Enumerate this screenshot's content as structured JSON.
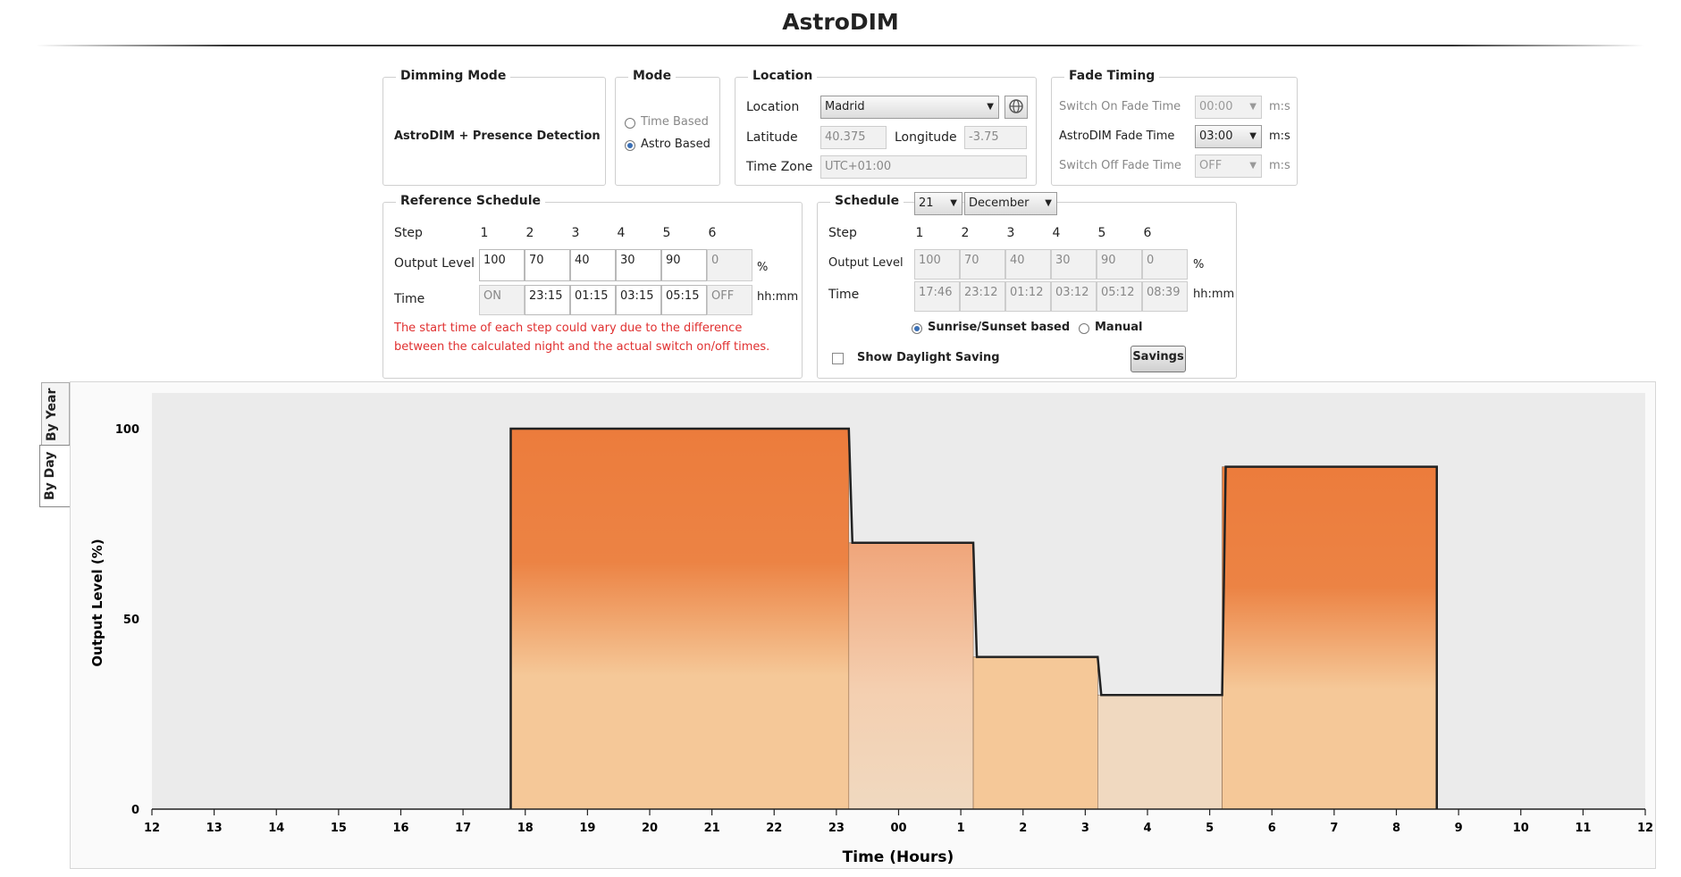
{
  "app": {
    "title": "AstroDIM"
  },
  "dimming_mode": {
    "legend": "Dimming Mode",
    "value": "AstroDIM + Presence Detection"
  },
  "mode": {
    "legend": "Mode",
    "options": [
      "Time Based",
      "Astro Based"
    ],
    "selected": "Astro Based"
  },
  "location": {
    "legend": "Location",
    "location_label": "Location",
    "location_value": "Madrid",
    "latitude_label": "Latitude",
    "latitude_value": "40.375",
    "longitude_label": "Longitude",
    "longitude_value": "-3.75",
    "timezone_label": "Time Zone",
    "timezone_value": "UTC+01:00"
  },
  "fade_timing": {
    "legend": "Fade Timing",
    "rows": [
      {
        "label": "Switch On Fade Time",
        "value": "00:00",
        "unit": "m:s",
        "enabled": false
      },
      {
        "label": "AstroDIM Fade Time",
        "value": "03:00",
        "unit": "m:s",
        "enabled": true
      },
      {
        "label": "Switch Off Fade Time",
        "value": "OFF",
        "unit": "m:s",
        "enabled": false
      }
    ]
  },
  "reference_schedule": {
    "legend": "Reference Schedule",
    "step_label": "Step",
    "steps": [
      "1",
      "2",
      "3",
      "4",
      "5",
      "6"
    ],
    "output_label": "Output Level",
    "output_values": [
      "100",
      "70",
      "40",
      "30",
      "90",
      "0"
    ],
    "output_unit": "%",
    "time_label": "Time",
    "time_values": [
      "ON",
      "23:15",
      "01:15",
      "03:15",
      "05:15",
      "OFF"
    ],
    "time_unit": "hh:mm",
    "warning_line1": "The start time of each step could vary due to the difference",
    "warning_line2": "between the calculated night and the actual switch on/off times."
  },
  "schedule": {
    "legend": "Schedule",
    "day": "21",
    "month": "December",
    "step_label": "Step",
    "steps": [
      "1",
      "2",
      "3",
      "4",
      "5",
      "6"
    ],
    "output_label": "Output Level",
    "output_values": [
      "100",
      "70",
      "40",
      "30",
      "90",
      "0"
    ],
    "output_unit": "%",
    "time_label": "Time",
    "time_values": [
      "17:46",
      "23:12",
      "01:12",
      "03:12",
      "05:12",
      "08:39"
    ],
    "time_unit": "hh:mm",
    "mode_options": [
      "Sunrise/Sunset based",
      "Manual"
    ],
    "mode_selected": "Sunrise/Sunset based",
    "daylight_label": "Show Daylight Saving",
    "savings_button": "Savings"
  },
  "tabs": {
    "by_year": "By Year",
    "by_day": "By Day",
    "active": "By Day"
  },
  "colors": {
    "dark_fill": "#ec7c3c",
    "light_fill": "#f5c898",
    "pale_fill": "#f0d9c0"
  },
  "chart_data": {
    "type": "area",
    "xlabel": "Time (Hours)",
    "ylabel": "Output Level (%)",
    "x_ticks": [
      "12",
      "13",
      "14",
      "15",
      "16",
      "17",
      "18",
      "19",
      "20",
      "21",
      "22",
      "23",
      "00",
      "1",
      "2",
      "3",
      "4",
      "5",
      "6",
      "7",
      "8",
      "9",
      "10",
      "11",
      "12"
    ],
    "y_ticks": [
      "0",
      "50",
      "100"
    ],
    "ylim": [
      0,
      100
    ],
    "steps": [
      {
        "start": "17:46",
        "end": "23:12",
        "level": 100
      },
      {
        "start": "23:12",
        "end": "01:12",
        "level": 70
      },
      {
        "start": "01:12",
        "end": "03:12",
        "level": 40
      },
      {
        "start": "03:12",
        "end": "05:12",
        "level": 30
      },
      {
        "start": "05:12",
        "end": "08:39",
        "level": 90
      }
    ]
  }
}
